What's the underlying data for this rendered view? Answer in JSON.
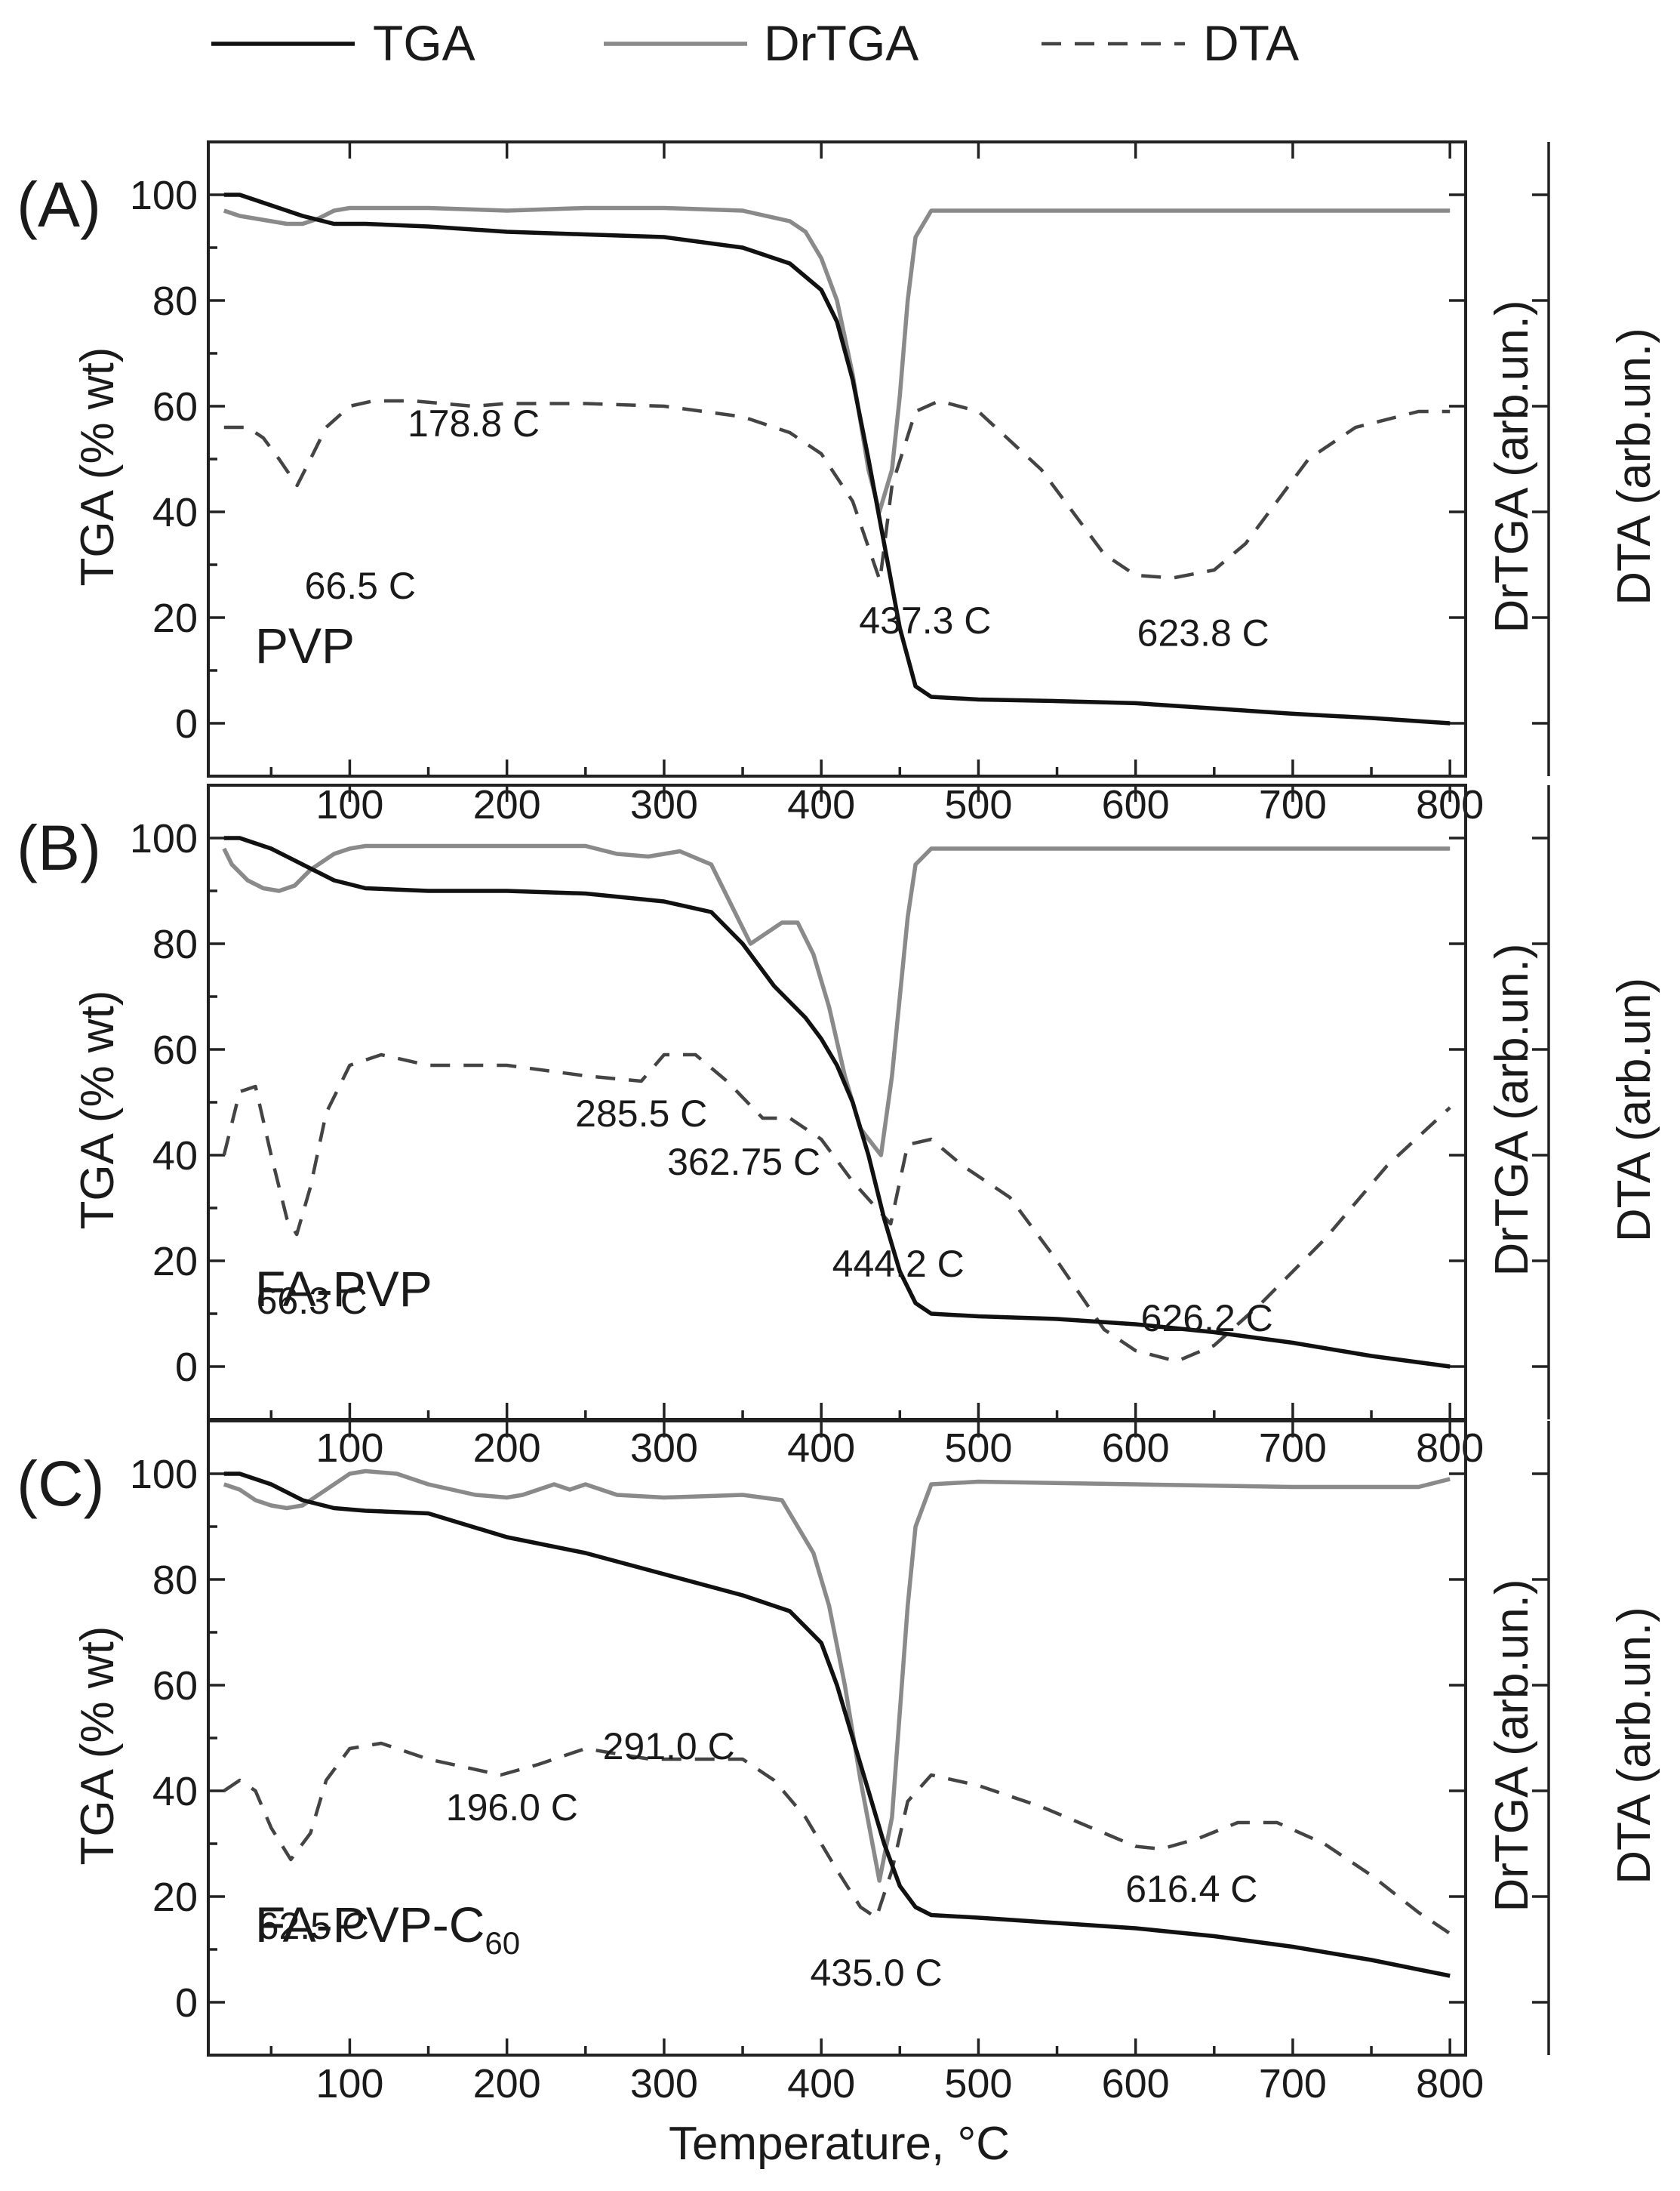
{
  "chart_data": {
    "legend": [
      {
        "name": "TGA",
        "style": "solid",
        "color": "#111111"
      },
      {
        "name": "DrTGA",
        "style": "solid",
        "color": "#8a8a8a"
      },
      {
        "name": "DTA",
        "style": "dashed",
        "color": "#444444"
      }
    ],
    "xlabel": "Temperature, °C",
    "xlim": [
      10,
      810
    ],
    "xticks": [
      100,
      200,
      300,
      400,
      500,
      600,
      700,
      800
    ],
    "ylim": [
      -10,
      110
    ],
    "yticks": [
      0,
      20,
      40,
      60,
      80,
      100
    ],
    "panels": [
      {
        "type": "line",
        "letter": "(A)",
        "sample": "PVP",
        "ylabel": "TGA (% wt)",
        "right_label_1": "DrTGA (arb.un.)",
        "right_label_2": "DTA (arb.un.)",
        "series": [
          {
            "name": "TGA",
            "x": [
              20,
              30,
              50,
              70,
              90,
              110,
              150,
              200,
              250,
              300,
              350,
              380,
              400,
              410,
              420,
              430,
              440,
              450,
              460,
              470,
              500,
              550,
              600,
              650,
              700,
              750,
              800
            ],
            "y": [
              100,
              100,
              98,
              96,
              94.5,
              94.5,
              94,
              93,
              92.5,
              92,
              90,
              87,
              82,
              76,
              65,
              50,
              34,
              18,
              7,
              5,
              4.5,
              4.2,
              3.8,
              2.8,
              1.8,
              1,
              0
            ]
          },
          {
            "name": "DrTGA",
            "x": [
              20,
              30,
              40,
              50,
              60,
              70,
              80,
              90,
              100,
              150,
              200,
              250,
              300,
              350,
              380,
              390,
              400,
              410,
              420,
              430,
              437,
              445,
              450,
              455,
              460,
              470,
              500,
              600,
              700,
              800
            ],
            "y": [
              97,
              96,
              95.5,
              95,
              94.5,
              94.5,
              95.5,
              97,
              97.5,
              97.5,
              97,
              97.5,
              97.5,
              97,
              95,
              93,
              88,
              80,
              66,
              48,
              40,
              48,
              62,
              80,
              92,
              97,
              97,
              97,
              97,
              97
            ]
          },
          {
            "name": "DTA",
            "x": [
              20,
              35,
              45,
              55,
              66.5,
              75,
              85,
              100,
              115,
              140,
              178.8,
              200,
              250,
              300,
              350,
              380,
              400,
              420,
              437.3,
              445,
              460,
              475,
              500,
              540,
              580,
              600,
              623.8,
              650,
              670,
              690,
              710,
              740,
              780,
              800
            ],
            "y": [
              56,
              56,
              54,
              50,
              45,
              50,
              56,
              60,
              61,
              61,
              60,
              60.5,
              60.5,
              60,
              58,
              55,
              51,
              42,
              27,
              45,
              59,
              61,
              59,
              48,
              32,
              28,
              27.5,
              29,
              34,
              42,
              50,
              56,
              59,
              59
            ]
          }
        ],
        "annotations": [
          {
            "text": "66.5 C",
            "x": 66.5
          },
          {
            "text": "178.8 C",
            "x": 178.8
          },
          {
            "text": "437.3 C",
            "x": 437.3
          },
          {
            "text": "623.8 C",
            "x": 623.8
          }
        ]
      },
      {
        "type": "line",
        "letter": "(B)",
        "sample": "FA-PVP",
        "ylabel": "TGA (% wt)",
        "right_label_1": "DrTGA (arb.un.)",
        "right_label_2": "DTA (arb.un)",
        "series": [
          {
            "name": "TGA",
            "x": [
              20,
              30,
              50,
              70,
              90,
              110,
              150,
              200,
              250,
              300,
              330,
              350,
              370,
              390,
              400,
              410,
              420,
              430,
              440,
              450,
              460,
              470,
              500,
              550,
              600,
              650,
              700,
              750,
              800
            ],
            "y": [
              100,
              100,
              98,
              95,
              92,
              90.5,
              90,
              90,
              89.5,
              88,
              86,
              80,
              72,
              66,
              62,
              57,
              50,
              40,
              28,
              18,
              12,
              10,
              9.5,
              9,
              8,
              6.5,
              4.5,
              2,
              0
            ]
          },
          {
            "name": "DrTGA",
            "x": [
              20,
              25,
              35,
              45,
              55,
              65,
              75,
              90,
              100,
              110,
              150,
              200,
              250,
              270,
              290,
              310,
              330,
              345,
              355,
              365,
              375,
              385,
              395,
              405,
              415,
              425,
              438,
              445,
              450,
              455,
              460,
              470,
              500,
              600,
              700,
              800
            ],
            "y": [
              98,
              95,
              92,
              90.5,
              90,
              91,
              94,
              97,
              98,
              98.5,
              98.5,
              98.5,
              98.5,
              97,
              96.5,
              97.5,
              95,
              86,
              80,
              82,
              84,
              84,
              78,
              68,
              55,
              45,
              40,
              55,
              70,
              85,
              95,
              98,
              98,
              98,
              98,
              98
            ]
          },
          {
            "name": "DTA",
            "x": [
              20,
              30,
              40,
              50,
              60,
              66.3,
              75,
              85,
              100,
              120,
              150,
              200,
              250,
              285.5,
              300,
              320,
              340,
              362.75,
              380,
              400,
              420,
              444.2,
              455,
              470,
              490,
              520,
              550,
              580,
              600,
              626.2,
              650,
              680,
              720,
              760,
              800
            ],
            "y": [
              40,
              52,
              53,
              40,
              28,
              25,
              34,
              48,
              57,
              59,
              57,
              57,
              55,
              54,
              59,
              59,
              54,
              47,
              47,
              43,
              35,
              27,
              42,
              43,
              38,
              32,
              20,
              7,
              3,
              1,
              4,
              12,
              24,
              38,
              49
            ]
          }
        ],
        "annotations": [
          {
            "text": "66.3 C",
            "x": 66.3
          },
          {
            "text": "285.5 C",
            "x": 285.5
          },
          {
            "text": "362.75 C",
            "x": 362.75
          },
          {
            "text": "444.2 C",
            "x": 444.2
          },
          {
            "text": "626.2 C",
            "x": 626.2
          }
        ]
      },
      {
        "type": "line",
        "letter": "(C)",
        "sample": "FA-PVP-C",
        "sample_sub": "60",
        "ylabel": "TGA (% wt)",
        "right_label_1": "DrTGA (arb.un.)",
        "right_label_2": "DTA (arb.un.)",
        "series": [
          {
            "name": "TGA",
            "x": [
              20,
              30,
              50,
              70,
              90,
              110,
              150,
              200,
              250,
              300,
              350,
              380,
              400,
              410,
              420,
              430,
              440,
              450,
              460,
              470,
              500,
              550,
              600,
              650,
              700,
              750,
              800
            ],
            "y": [
              100,
              100,
              98,
              95,
              93.5,
              93,
              92.5,
              88,
              85,
              81,
              77,
              74,
              68,
              60,
              50,
              40,
              30,
              22,
              18,
              16.5,
              16,
              15,
              14,
              12.5,
              10.5,
              8,
              5
            ]
          },
          {
            "name": "DrTGA",
            "x": [
              20,
              30,
              40,
              50,
              60,
              70,
              80,
              90,
              100,
              110,
              130,
              150,
              180,
              200,
              210,
              220,
              230,
              240,
              250,
              260,
              270,
              300,
              350,
              375,
              385,
              395,
              405,
              415,
              425,
              437,
              445,
              450,
              455,
              460,
              470,
              500,
              600,
              700,
              780,
              800
            ],
            "y": [
              98,
              97,
              95,
              94,
              93.5,
              94,
              96,
              98,
              100,
              100.5,
              100,
              98,
              96,
              95.5,
              96,
              97,
              98,
              97,
              98,
              97,
              96,
              95.5,
              96,
              95,
              90,
              85,
              75,
              60,
              42,
              23,
              35,
              55,
              75,
              90,
              98,
              98.5,
              98,
              97.5,
              97.5,
              99
            ]
          },
          {
            "name": "DTA",
            "x": [
              20,
              30,
              40,
              50,
              62.5,
              75,
              85,
              100,
              120,
              150,
              196,
              220,
              250,
              270,
              291,
              320,
              350,
              370,
              390,
              410,
              425,
              435,
              445,
              455,
              470,
              500,
              540,
              580,
              600,
              616.4,
              640,
              665,
              690,
              720,
              750,
              780,
              800
            ],
            "y": [
              40,
              42,
              40,
              33,
              27,
              32,
              42,
              48,
              49,
              46,
              43,
              45,
              48,
              47,
              46,
              46,
              46,
              42,
              35,
              25,
              18,
              16,
              25,
              38,
              43,
              41,
              37,
              32,
              29.5,
              29,
              31,
              34,
              34,
              30,
              24,
              17,
              13
            ]
          }
        ],
        "annotations": [
          {
            "text": "62.5 C",
            "x": 62.5
          },
          {
            "text": "196.0 C",
            "x": 196.0
          },
          {
            "text": "291.0 C",
            "x": 291.0
          },
          {
            "text": "435.0 C",
            "x": 435.0
          },
          {
            "text": "616.4 C",
            "x": 616.4
          }
        ]
      }
    ]
  }
}
